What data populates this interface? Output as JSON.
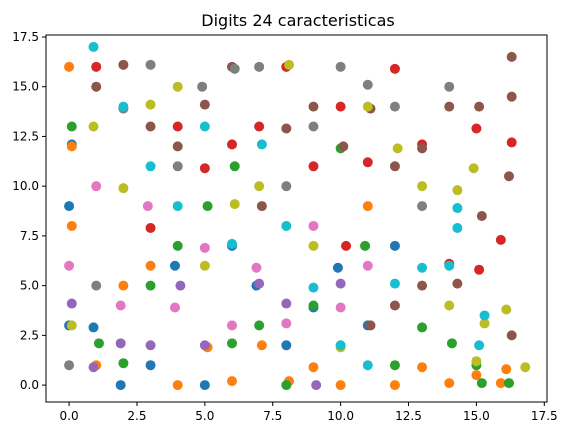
{
  "chart_data": {
    "type": "scatter",
    "title": "Digits 24 caracteristicas",
    "xlabel": "",
    "ylabel": "",
    "xlim": [
      -0.85,
      17.6
    ],
    "ylim": [
      -0.85,
      17.6
    ],
    "xticks": [
      0.0,
      2.5,
      5.0,
      7.5,
      10.0,
      12.5,
      15.0,
      17.5
    ],
    "xtick_labels": [
      "0.0",
      "2.5",
      "5.0",
      "7.5",
      "10.0",
      "12.5",
      "15.0",
      "17.5"
    ],
    "yticks": [
      0.0,
      2.5,
      5.0,
      7.5,
      10.0,
      12.5,
      15.0,
      17.5
    ],
    "ytick_labels": [
      "0.0",
      "2.5",
      "5.0",
      "7.5",
      "10.0",
      "12.5",
      "15.0",
      "17.5"
    ],
    "grid": false,
    "legend": "none",
    "class_colors": [
      "#1f77b4",
      "#ff7f0e",
      "#2ca02c",
      "#d62728",
      "#9467bd",
      "#8c564b",
      "#e377c2",
      "#7f7f7f",
      "#bcbd22",
      "#17becf"
    ],
    "series": [
      {
        "points": [
          [
            0.0,
            3.0
          ],
          [
            0.0,
            9.0
          ],
          [
            0.1,
            12.1
          ],
          [
            0.9,
            2.9
          ],
          [
            1.9,
            0.0
          ],
          [
            3.0,
            1.0
          ],
          [
            3.9,
            6.0
          ],
          [
            5.0,
            0.0
          ],
          [
            6.0,
            7.0
          ],
          [
            6.9,
            5.0
          ],
          [
            8.0,
            2.0
          ],
          [
            9.0,
            3.9
          ],
          [
            9.9,
            5.9
          ],
          [
            11.0,
            3.0
          ],
          [
            12.0,
            7.0
          ]
        ]
      },
      {
        "points": [
          [
            0.0,
            16.0
          ],
          [
            0.1,
            12.0
          ],
          [
            0.1,
            8.0
          ],
          [
            1.0,
            1.0
          ],
          [
            2.0,
            5.0
          ],
          [
            3.0,
            6.0
          ],
          [
            4.0,
            0.0
          ],
          [
            5.1,
            1.9
          ],
          [
            6.0,
            0.2
          ],
          [
            7.1,
            2.0
          ],
          [
            8.1,
            0.2
          ],
          [
            9.0,
            0.9
          ],
          [
            10.0,
            0.0
          ],
          [
            11.0,
            9.0
          ],
          [
            12.0,
            0.0
          ],
          [
            13.0,
            0.9
          ],
          [
            14.0,
            0.1
          ],
          [
            15.0,
            0.5
          ],
          [
            15.9,
            0.1
          ],
          [
            16.1,
            0.8
          ]
        ]
      },
      {
        "points": [
          [
            0.1,
            13.0
          ],
          [
            1.1,
            2.1
          ],
          [
            2.0,
            1.1
          ],
          [
            3.0,
            5.0
          ],
          [
            4.0,
            7.0
          ],
          [
            5.1,
            9.0
          ],
          [
            6.1,
            11.0
          ],
          [
            6.0,
            2.1
          ],
          [
            7.0,
            3.0
          ],
          [
            8.0,
            0.0
          ],
          [
            9.0,
            4.0
          ],
          [
            10.0,
            11.9
          ],
          [
            10.9,
            7.0
          ],
          [
            12.0,
            1.0
          ],
          [
            13.0,
            2.9
          ],
          [
            14.1,
            2.1
          ],
          [
            15.0,
            1.0
          ],
          [
            15.2,
            0.1
          ],
          [
            16.2,
            0.1
          ]
        ]
      },
      {
        "points": [
          [
            1.0,
            16.0
          ],
          [
            3.0,
            7.9
          ],
          [
            4.0,
            13.0
          ],
          [
            5.0,
            10.9
          ],
          [
            6.0,
            12.1
          ],
          [
            7.0,
            13.0
          ],
          [
            8.0,
            16.0
          ],
          [
            9.0,
            11.0
          ],
          [
            10.0,
            14.0
          ],
          [
            10.2,
            7.0
          ],
          [
            11.0,
            11.2
          ],
          [
            12.0,
            15.9
          ],
          [
            13.0,
            12.1
          ],
          [
            14.0,
            6.1
          ],
          [
            15.0,
            12.9
          ],
          [
            16.3,
            12.2
          ],
          [
            15.9,
            7.3
          ],
          [
            15.1,
            5.8
          ]
        ]
      },
      {
        "points": [
          [
            0.1,
            4.1
          ],
          [
            0.9,
            0.9
          ],
          [
            1.9,
            2.1
          ],
          [
            3.0,
            2.0
          ],
          [
            4.1,
            5.0
          ],
          [
            5.0,
            2.0
          ],
          [
            7.0,
            5.1
          ],
          [
            8.0,
            4.1
          ],
          [
            9.1,
            0.0
          ],
          [
            10.0,
            5.1
          ]
        ]
      },
      {
        "points": [
          [
            1.0,
            15.0
          ],
          [
            2.0,
            16.1
          ],
          [
            3.0,
            13.0
          ],
          [
            4.0,
            12.0
          ],
          [
            5.0,
            14.1
          ],
          [
            6.0,
            16.0
          ],
          [
            7.1,
            9.0
          ],
          [
            8.0,
            12.9
          ],
          [
            9.0,
            14.0
          ],
          [
            10.1,
            12.0
          ],
          [
            11.1,
            13.9
          ],
          [
            12.0,
            11.0
          ],
          [
            13.0,
            11.9
          ],
          [
            14.0,
            14.0
          ],
          [
            15.1,
            14.0
          ],
          [
            16.3,
            14.5
          ],
          [
            16.3,
            16.5
          ],
          [
            16.2,
            10.5
          ],
          [
            15.2,
            8.5
          ],
          [
            14.3,
            5.1
          ],
          [
            13.0,
            5.0
          ],
          [
            12.0,
            4.0
          ],
          [
            11.1,
            3.0
          ],
          [
            16.3,
            2.5
          ]
        ]
      },
      {
        "points": [
          [
            0.0,
            6.0
          ],
          [
            1.0,
            10.0
          ],
          [
            1.9,
            4.0
          ],
          [
            2.9,
            9.0
          ],
          [
            3.9,
            3.9
          ],
          [
            5.0,
            6.9
          ],
          [
            6.0,
            3.0
          ],
          [
            6.9,
            5.9
          ],
          [
            8.0,
            3.1
          ],
          [
            9.0,
            8.0
          ],
          [
            10.0,
            3.9
          ],
          [
            11.0,
            6.0
          ]
        ]
      },
      {
        "points": [
          [
            0.0,
            1.0
          ],
          [
            1.0,
            5.0
          ],
          [
            2.0,
            13.9
          ],
          [
            3.0,
            16.1
          ],
          [
            4.0,
            11.0
          ],
          [
            4.9,
            15.0
          ],
          [
            6.1,
            15.9
          ],
          [
            7.0,
            16.0
          ],
          [
            8.0,
            10.0
          ],
          [
            9.0,
            13.0
          ],
          [
            10.0,
            16.0
          ],
          [
            11.0,
            15.1
          ],
          [
            12.0,
            14.0
          ],
          [
            13.0,
            9.0
          ],
          [
            14.0,
            15.0
          ]
        ]
      },
      {
        "points": [
          [
            0.1,
            3.0
          ],
          [
            0.9,
            13.0
          ],
          [
            2.0,
            9.9
          ],
          [
            3.0,
            14.1
          ],
          [
            4.0,
            15.0
          ],
          [
            5.0,
            6.0
          ],
          [
            6.1,
            9.1
          ],
          [
            7.0,
            10.0
          ],
          [
            8.1,
            16.1
          ],
          [
            9.0,
            7.0
          ],
          [
            10.0,
            1.9
          ],
          [
            11.0,
            14.0
          ],
          [
            12.1,
            11.9
          ],
          [
            13.0,
            10.0
          ],
          [
            14.0,
            4.0
          ],
          [
            14.3,
            9.8
          ],
          [
            15.0,
            1.2
          ],
          [
            15.3,
            3.1
          ],
          [
            16.1,
            3.8
          ],
          [
            16.8,
            0.9
          ],
          [
            14.9,
            10.9
          ]
        ]
      },
      {
        "points": [
          [
            0.9,
            17.0
          ],
          [
            2.0,
            14.0
          ],
          [
            3.0,
            11.0
          ],
          [
            4.0,
            9.0
          ],
          [
            5.0,
            13.0
          ],
          [
            6.0,
            7.1
          ],
          [
            7.1,
            12.1
          ],
          [
            8.0,
            8.0
          ],
          [
            9.0,
            4.9
          ],
          [
            10.0,
            2.0
          ],
          [
            11.0,
            1.0
          ],
          [
            12.0,
            5.1
          ],
          [
            13.0,
            5.9
          ],
          [
            14.3,
            7.9
          ],
          [
            14.3,
            8.9
          ],
          [
            15.1,
            2.0
          ],
          [
            15.3,
            3.5
          ],
          [
            14.0,
            6.0
          ]
        ]
      }
    ]
  }
}
